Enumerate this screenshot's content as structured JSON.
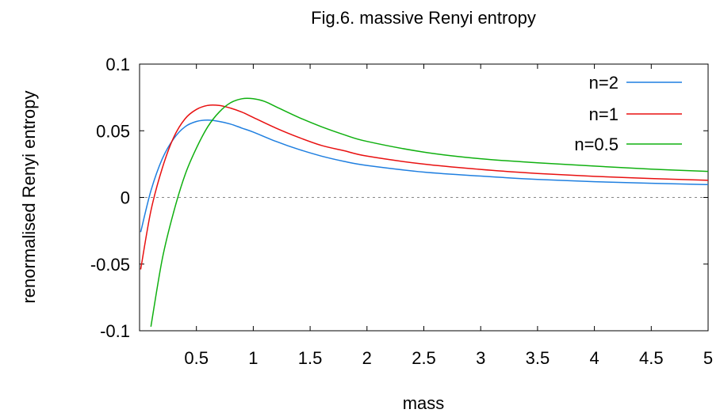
{
  "chart_data": {
    "type": "line",
    "title": "Fig.6. massive Renyi entropy",
    "xlabel": "mass",
    "ylabel": "renormalised Renyi entropy",
    "xlim": [
      0,
      5
    ],
    "ylim": [
      -0.1,
      0.1
    ],
    "xticks": [
      "0.5",
      "1",
      "1.5",
      "2",
      "2.5",
      "3",
      "3.5",
      "4",
      "4.5",
      "5"
    ],
    "yticks": [
      "0.1",
      "0.05",
      "0",
      "-0.05",
      "-0.1"
    ],
    "xtick_values": [
      0.5,
      1,
      1.5,
      2,
      2.5,
      3,
      3.5,
      4,
      4.5,
      5
    ],
    "ytick_values": [
      0.1,
      0.05,
      0,
      -0.05,
      -0.1
    ],
    "zero_line": true,
    "grid": false,
    "legend_position": "top-right",
    "series": [
      {
        "name": "n=2",
        "color": "#1f7fe0",
        "x": [
          0.01,
          0.1,
          0.2,
          0.3,
          0.4,
          0.5,
          0.6,
          0.7,
          0.8,
          0.9,
          1.0,
          1.2,
          1.4,
          1.6,
          1.8,
          2.0,
          2.5,
          3.0,
          3.5,
          4.0,
          4.5,
          5.0
        ],
        "y": [
          -0.026,
          0.005,
          0.029,
          0.044,
          0.053,
          0.057,
          0.058,
          0.057,
          0.055,
          0.052,
          0.049,
          0.042,
          0.036,
          0.031,
          0.027,
          0.024,
          0.019,
          0.016,
          0.0135,
          0.0118,
          0.0106,
          0.0096
        ]
      },
      {
        "name": "n=1",
        "color": "#e81010",
        "x": [
          0.01,
          0.1,
          0.2,
          0.3,
          0.4,
          0.5,
          0.6,
          0.7,
          0.8,
          0.9,
          1.0,
          1.2,
          1.4,
          1.6,
          1.8,
          2.0,
          2.5,
          3.0,
          3.5,
          4.0,
          4.5,
          5.0
        ],
        "y": [
          -0.054,
          -0.01,
          0.022,
          0.045,
          0.059,
          0.066,
          0.069,
          0.069,
          0.067,
          0.064,
          0.06,
          0.052,
          0.045,
          0.039,
          0.035,
          0.031,
          0.025,
          0.021,
          0.018,
          0.0158,
          0.0142,
          0.0128
        ]
      },
      {
        "name": "n=0.5",
        "color": "#10b010",
        "x": [
          0.1,
          0.2,
          0.3,
          0.4,
          0.5,
          0.6,
          0.7,
          0.8,
          0.9,
          1.0,
          1.1,
          1.2,
          1.4,
          1.6,
          1.8,
          2.0,
          2.5,
          3.0,
          3.5,
          4.0,
          4.5,
          5.0
        ],
        "y": [
          -0.097,
          -0.046,
          -0.011,
          0.017,
          0.037,
          0.053,
          0.064,
          0.071,
          0.074,
          0.074,
          0.072,
          0.068,
          0.06,
          0.053,
          0.047,
          0.042,
          0.034,
          0.029,
          0.026,
          0.0235,
          0.0212,
          0.0195
        ]
      }
    ]
  }
}
